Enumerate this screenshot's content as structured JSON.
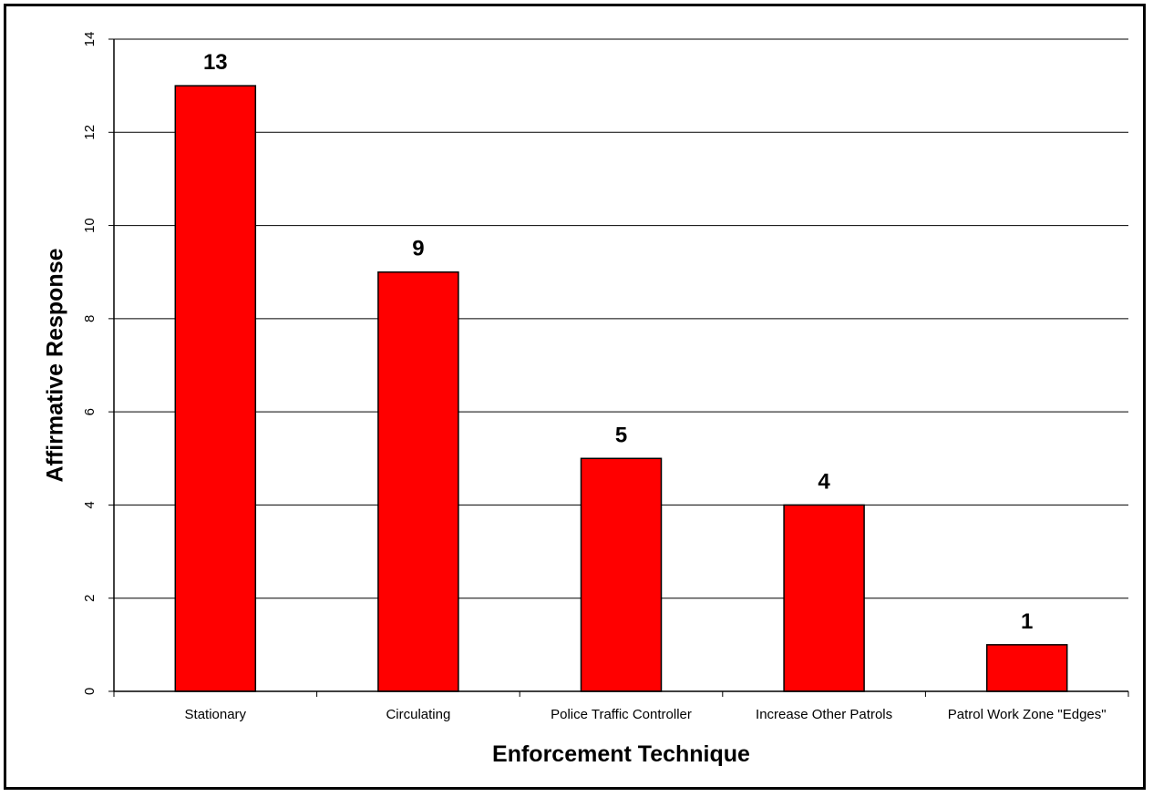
{
  "chart_data": {
    "type": "bar",
    "title": "",
    "xlabel": "Enforcement Technique",
    "ylabel": "Affirmative Response",
    "categories": [
      "Stationary",
      "Circulating",
      "Police Traffic Controller",
      "Increase Other Patrols",
      "Patrol Work Zone \"Edges\""
    ],
    "values": [
      13,
      9,
      5,
      4,
      1
    ],
    "data_labels": [
      "13",
      "9",
      "5",
      "4",
      "1"
    ],
    "ylim": [
      0,
      14
    ],
    "yticks": [
      "0",
      "2",
      "4",
      "6",
      "8",
      "10",
      "12",
      "14"
    ],
    "grid": true,
    "legend": "none",
    "bar_color": "#ff0000",
    "bar_border_color": "#000000"
  }
}
